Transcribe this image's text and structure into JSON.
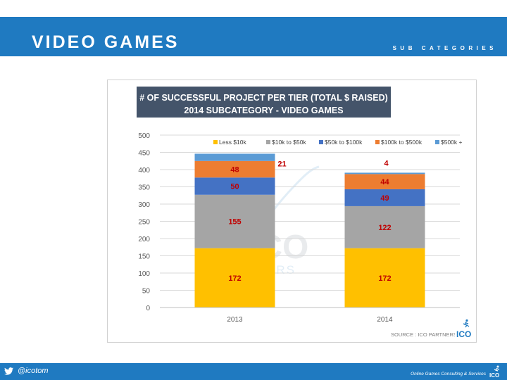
{
  "header": {
    "title": "VIDEO GAMES",
    "subtitle": "SUB CATEGORIES"
  },
  "footer": {
    "handle": "@icotom",
    "tagline": "Online Games Consulting & Services",
    "logo_text": "ICO"
  },
  "watermark": {
    "line1": "ICO",
    "line2": "PARTNERS"
  },
  "source": {
    "label": "SOURCE : ICO PARTNERS",
    "logo_text": "ICO"
  },
  "chart_data": {
    "type": "bar",
    "stacked": true,
    "title_line1": "# OF SUCCESSFUL PROJECT PER TIER (TOTAL $ RAISED)",
    "title_line2": "2014 SUBCATEGORY - VIDEO GAMES",
    "categories": [
      "2013",
      "2014"
    ],
    "ylim": [
      0,
      500
    ],
    "yticks": [
      0,
      50,
      100,
      150,
      200,
      250,
      300,
      350,
      400,
      450,
      500
    ],
    "grid": true,
    "legend_position": "top-right",
    "series": [
      {
        "name": "Less $10k",
        "values": [
          172,
          172
        ],
        "color": "#ffc000"
      },
      {
        "name": "$10k to $50k",
        "values": [
          155,
          122
        ],
        "color": "#a5a5a5"
      },
      {
        "name": "$50k to $100k",
        "values": [
          50,
          49
        ],
        "color": "#4472c4"
      },
      {
        "name": "$100k to $500k",
        "values": [
          48,
          44
        ],
        "color": "#ed7d31"
      },
      {
        "name": "$500k +",
        "values": [
          21,
          4
        ],
        "color": "#5b9bd5"
      }
    ],
    "label_color": "#c00000",
    "title_bg": "#44546a"
  }
}
